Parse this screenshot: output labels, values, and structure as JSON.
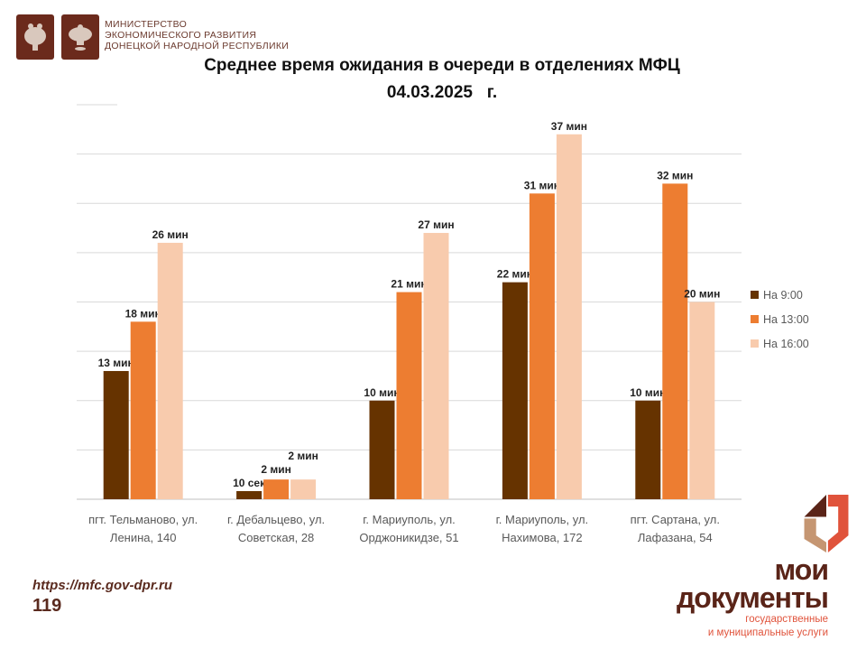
{
  "header": {
    "ministry_lines": [
      "МИНИСТЕРСТВО",
      "ЭКОНОМИЧЕСКОГО РАЗВИТИЯ",
      "ДОНЕЦКОЙ НАРОДНОЙ РЕСПУБЛИКИ"
    ]
  },
  "footer": {
    "url": "https://mfc.gov-dpr.ru",
    "number": "119",
    "logo_line1": "мои",
    "logo_line2": "документы",
    "logo_sub1": "государственные",
    "logo_sub2": "и муниципальные услуги"
  },
  "colors": {
    "s1": "#663300",
    "s2": "#ed7d31",
    "s3": "#f8cbad",
    "grid": "#d9d9d9"
  },
  "chart_data": {
    "type": "bar",
    "title": "Среднее время ожидания в очереди в отделениях МФЦ",
    "subtitle": "04.03.2025   г.",
    "categories": [
      [
        "пгт. Тельманово, ул.",
        "Ленина, 140"
      ],
      [
        "г. Дебальцево, ул.",
        "Советская, 28"
      ],
      [
        "г. Мариуполь, ул.",
        "Орджоникидзе, 51"
      ],
      [
        "г. Мариуполь, ул.",
        "Нахимова, 172"
      ],
      [
        "пгт. Сартана, ул.",
        "Лафазана, 54"
      ]
    ],
    "series": [
      {
        "name": "На 9:00",
        "values": [
          13,
          0.17,
          10,
          22,
          10
        ],
        "labels": [
          "13 мин",
          "10 сек",
          "10 мин",
          "22 мин",
          "10 мин"
        ]
      },
      {
        "name": "На 13:00",
        "values": [
          18,
          2,
          21,
          31,
          32
        ],
        "labels": [
          "18 мин",
          "2 мин",
          "21 мин",
          "31 мин",
          "32 мин"
        ]
      },
      {
        "name": "На 16:00",
        "values": [
          26,
          2,
          27,
          37,
          20
        ],
        "labels": [
          "26 мин",
          "2 мин",
          "27 мин",
          "37 мин",
          "20 мин"
        ]
      }
    ],
    "ylim": [
      0,
      40
    ],
    "grid": true,
    "legend": "right",
    "unit": "min"
  }
}
